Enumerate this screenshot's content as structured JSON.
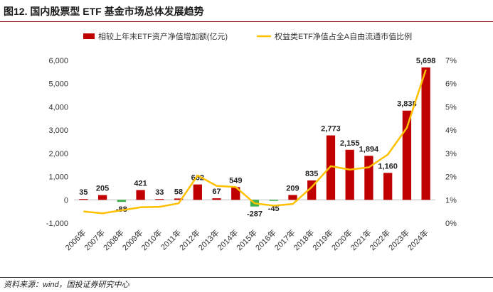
{
  "figure_title": "图12. 国内股票型 ETF 基金市场总体发展趋势",
  "source": "资料来源：wind，国投证券研究中心",
  "colors": {
    "bar_positive": "#c00000",
    "bar_negative": "#3cb44b",
    "line": "#ffc000",
    "title_rule": "#8b0000"
  },
  "chart_data": {
    "type": "bar+line",
    "categories": [
      "2006年",
      "2007年",
      "2008年",
      "2009年",
      "2010年",
      "2011年",
      "2012年",
      "2013年",
      "2014年",
      "2015年",
      "2016年",
      "2017年",
      "2018年",
      "2019年",
      "2020年",
      "2021年",
      "2022年",
      "2023年",
      "2024年"
    ],
    "series": [
      {
        "name": "相较上年末ETF资产净值增加额(亿元)",
        "type": "bar",
        "axis": "left",
        "values": [
          35,
          205,
          -88,
          421,
          33,
          58,
          662,
          67,
          549,
          -287,
          -45,
          209,
          835,
          2773,
          2155,
          1894,
          1160,
          3838,
          5698
        ],
        "labels": [
          "35",
          "205",
          "-88",
          "421",
          "33",
          "58",
          "662",
          "67",
          "549",
          "-287",
          "-45",
          "209",
          "835",
          "2,773",
          "2,155",
          "1,894",
          "1,160",
          "3,838",
          "5,698"
        ]
      },
      {
        "name": "权益类ETF净值占全A自由流通市值比例",
        "type": "line",
        "axis": "right",
        "unit": "%",
        "values": [
          0.5,
          0.42,
          0.55,
          0.68,
          0.7,
          0.85,
          2.05,
          1.6,
          1.55,
          0.85,
          0.75,
          0.82,
          1.55,
          2.45,
          2.3,
          2.4,
          2.95,
          4.1,
          6.6
        ]
      }
    ],
    "y_left": {
      "min": -1000,
      "max": 6000,
      "step": 1000,
      "tick_labels": [
        "-1,000",
        "0",
        "1,000",
        "2,000",
        "3,000",
        "4,000",
        "5,000",
        "6,000"
      ]
    },
    "y_right": {
      "min": 0,
      "max": 7,
      "step": 1,
      "tick_labels": [
        "0%",
        "1%",
        "2%",
        "3%",
        "4%",
        "5%",
        "6%",
        "7%"
      ]
    },
    "legend_position": "top",
    "grid": false
  }
}
